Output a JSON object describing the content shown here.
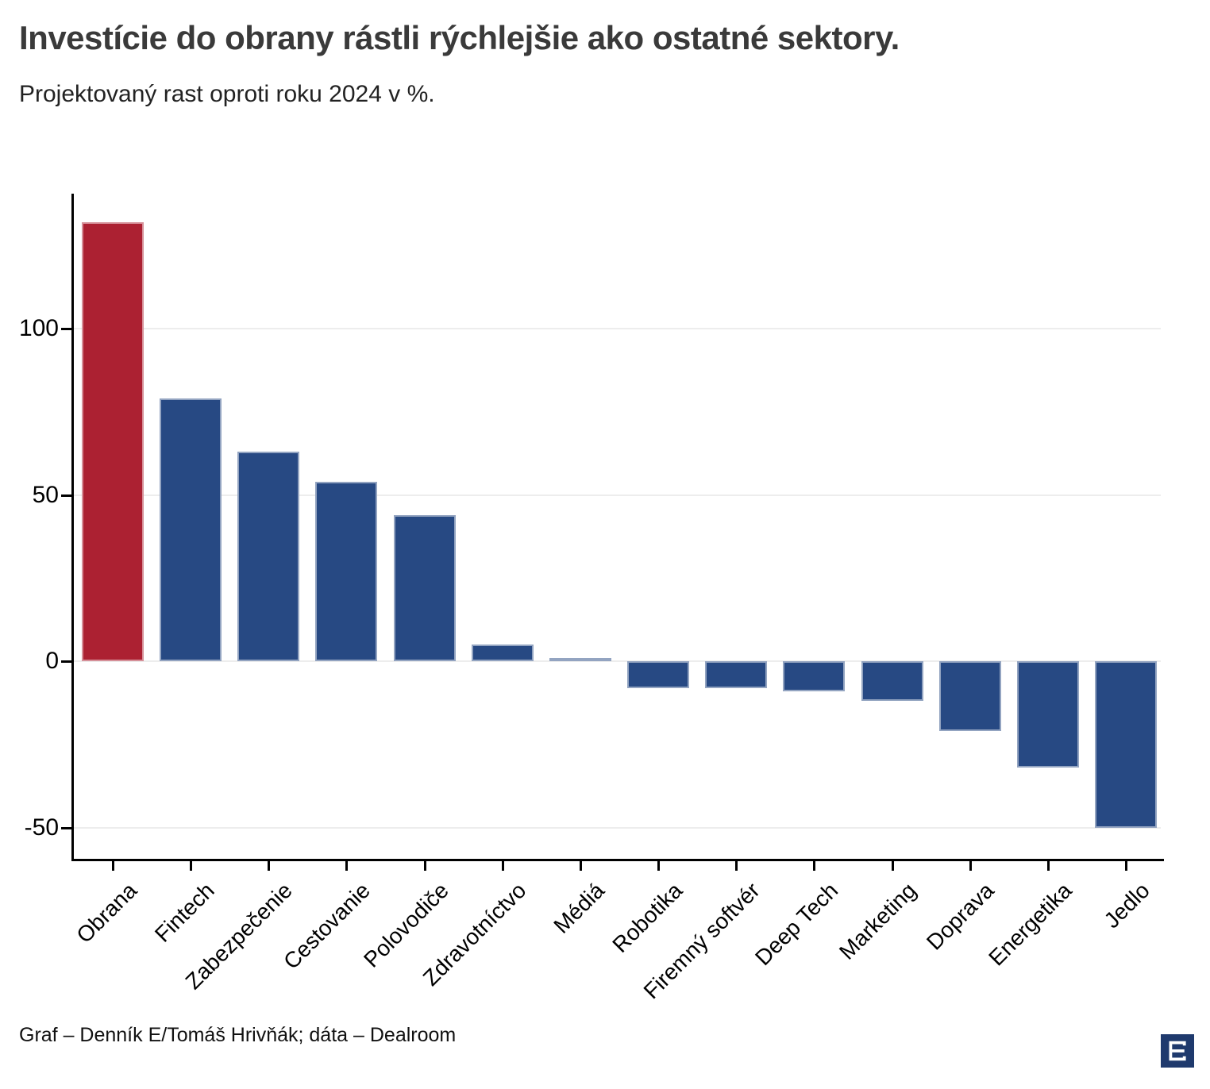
{
  "title": "Investície do obrany rástli rýchlejšie ako ostatné sektory.",
  "subtitle": "Projektovaný rast oproti roku 2024 v %.",
  "footer": {
    "credit": "Graf – Denník E/Tomáš Hrivňák; dáta – Dealroom"
  },
  "logo": {
    "name": "dennik-e-logo",
    "background": "#1F3A6D",
    "glyph_color": "#FFFFFF"
  },
  "colors": {
    "highlight": "#AC2132",
    "default": "#274983",
    "gridline": "#EDEDED",
    "axis": "#000000",
    "title_text": "#3A3A3A"
  },
  "chart_data": {
    "type": "bar",
    "title": "Investície do obrany rástli rýchlejšie ako ostatné sektory.",
    "subtitle": "Projektovaný rast oproti roku 2024 v %.",
    "unit": "%",
    "categories": [
      "Obrana",
      "Fintech",
      "Zabezpečenie",
      "Cestovanie",
      "Polovodiče",
      "Zdravotníctvo",
      "Médiá",
      "Robotika",
      "Firemný softvér",
      "Deep Tech",
      "Marketing",
      "Doprava",
      "Energetika",
      "Jedlo"
    ],
    "values": [
      132,
      79,
      63,
      54,
      44,
      5,
      1,
      -8,
      -8,
      -9,
      -12,
      -21,
      -32,
      -50
    ],
    "highlight_category": "Obrana",
    "yticks": [
      100,
      50,
      0,
      -50
    ],
    "ylim": [
      -59,
      140
    ],
    "grid": true,
    "legend": "none"
  }
}
